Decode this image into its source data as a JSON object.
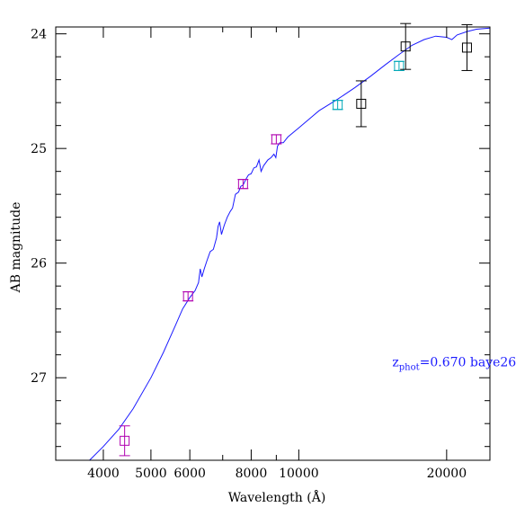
{
  "chart_data": {
    "type": "scatter",
    "xlabel": "Wavelength (Å)",
    "ylabel": "AB magnitude",
    "x_scale": "log",
    "xlim": [
      3200,
      24500
    ],
    "ylim": [
      27.72,
      23.94
    ],
    "y_inverted": true,
    "x_ticks_major": [
      4000,
      5000,
      6000,
      8000,
      10000,
      20000
    ],
    "x_tick_labels": [
      "4000",
      "5000",
      "6000",
      "8000",
      "10000",
      "20000"
    ],
    "x_ticks_minor": [
      3000,
      7000,
      9000,
      30000
    ],
    "y_ticks_major": [
      24,
      25,
      26,
      27
    ],
    "y_tick_labels": [
      "24",
      "25",
      "26",
      "27"
    ],
    "y_minor_step": 0.2,
    "annotation": {
      "z_main": "z",
      "z_sub": "phot",
      "value_text": "=0.670  baye26",
      "x": 15500,
      "y": 26.9
    },
    "colors": {
      "model": "#1a1aff",
      "optical": "#b000b0",
      "nir_cyan": "#00a8b8",
      "nir_black": "#000000",
      "annotation": "#1a1aff"
    },
    "series": [
      {
        "points": [
          {
            "x": 4420,
            "y": 27.55,
            "err": 0.13
          },
          {
            "x": 5950,
            "y": 26.29,
            "err": 0.04
          },
          {
            "x": 7700,
            "y": 25.31,
            "err": 0.04
          },
          {
            "x": 9000,
            "y": 24.92,
            "err": 0.04
          }
        ],
        "color": "#b000b0"
      },
      {
        "points": [
          {
            "x": 12000,
            "y": 24.62,
            "err": 0.04
          },
          {
            "x": 16000,
            "y": 24.28,
            "err": 0.04
          }
        ],
        "color": "#00a8b8"
      },
      {
        "points": [
          {
            "x": 13400,
            "y": 24.61,
            "err": 0.2
          },
          {
            "x": 16500,
            "y": 24.11,
            "err": 0.2
          },
          {
            "x": 22000,
            "y": 24.12,
            "err": 0.2
          }
        ],
        "color": "#000000"
      }
    ],
    "model_curve": [
      [
        3750,
        27.72
      ],
      [
        4000,
        27.6
      ],
      [
        4300,
        27.45
      ],
      [
        4600,
        27.27
      ],
      [
        5000,
        27.0
      ],
      [
        5300,
        26.78
      ],
      [
        5600,
        26.55
      ],
      [
        5800,
        26.4
      ],
      [
        6000,
        26.3
      ],
      [
        6150,
        26.24
      ],
      [
        6250,
        26.17
      ],
      [
        6300,
        26.05
      ],
      [
        6350,
        26.12
      ],
      [
        6420,
        26.05
      ],
      [
        6500,
        25.98
      ],
      [
        6600,
        25.9
      ],
      [
        6700,
        25.88
      ],
      [
        6800,
        25.78
      ],
      [
        6850,
        25.68
      ],
      [
        6900,
        25.64
      ],
      [
        6960,
        25.75
      ],
      [
        7050,
        25.67
      ],
      [
        7150,
        25.6
      ],
      [
        7250,
        25.55
      ],
      [
        7330,
        25.52
      ],
      [
        7430,
        25.4
      ],
      [
        7540,
        25.38
      ],
      [
        7620,
        25.33
      ],
      [
        7700,
        25.32
      ],
      [
        7800,
        25.27
      ],
      [
        7900,
        25.23
      ],
      [
        8000,
        25.22
      ],
      [
        8100,
        25.17
      ],
      [
        8200,
        25.16
      ],
      [
        8300,
        25.1
      ],
      [
        8380,
        25.2
      ],
      [
        8480,
        25.15
      ],
      [
        8650,
        25.1
      ],
      [
        8780,
        25.08
      ],
      [
        8900,
        25.05
      ],
      [
        8980,
        25.08
      ],
      [
        9050,
        24.98
      ],
      [
        9150,
        24.95
      ],
      [
        9300,
        24.95
      ],
      [
        9500,
        24.9
      ],
      [
        10000,
        24.82
      ],
      [
        11000,
        24.67
      ],
      [
        12000,
        24.57
      ],
      [
        13000,
        24.47
      ],
      [
        14000,
        24.37
      ],
      [
        15000,
        24.27
      ],
      [
        16000,
        24.18
      ],
      [
        17000,
        24.1
      ],
      [
        18000,
        24.05
      ],
      [
        19000,
        24.02
      ],
      [
        20000,
        24.03
      ],
      [
        20500,
        24.05
      ],
      [
        21000,
        24.01
      ],
      [
        22000,
        23.98
      ],
      [
        23000,
        23.96
      ],
      [
        24500,
        23.95
      ]
    ]
  }
}
